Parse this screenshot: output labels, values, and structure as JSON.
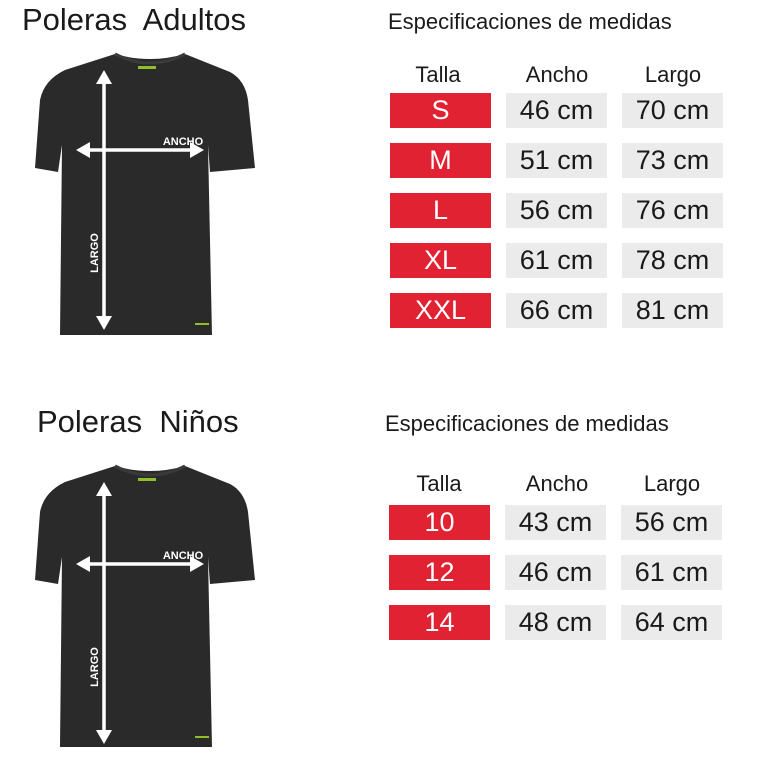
{
  "adults": {
    "title": "Poleras  Adultos",
    "spec_title": "Especificaciones de medidas",
    "headers": [
      "Talla",
      "Ancho",
      "Largo"
    ],
    "rows": [
      {
        "size": "S",
        "ancho": "46 cm",
        "largo": "70 cm"
      },
      {
        "size": "M",
        "ancho": "51 cm",
        "largo": "73 cm"
      },
      {
        "size": "L",
        "ancho": "56 cm",
        "largo": "76 cm"
      },
      {
        "size": "XL",
        "ancho": "61 cm",
        "largo": "78 cm"
      },
      {
        "size": "XXL",
        "ancho": "66 cm",
        "largo": "81 cm"
      }
    ],
    "shirt_labels": {
      "width": "ANCHO",
      "length": "LARGO"
    }
  },
  "kids": {
    "title": "Poleras  Niños",
    "spec_title": "Especificaciones de medidas",
    "headers": [
      "Talla",
      "Ancho",
      "Largo"
    ],
    "rows": [
      {
        "size": "10",
        "ancho": "43 cm",
        "largo": "56 cm"
      },
      {
        "size": "12",
        "ancho": "46 cm",
        "largo": "61 cm"
      },
      {
        "size": "14",
        "ancho": "48 cm",
        "largo": "64 cm"
      }
    ],
    "shirt_labels": {
      "width": "ANCHO",
      "length": "LARGO"
    }
  },
  "colors": {
    "size_cell": "#e02232",
    "value_cell": "#ebebeb",
    "shirt": "#2a2a2a",
    "logo": "#8fbf2a"
  }
}
